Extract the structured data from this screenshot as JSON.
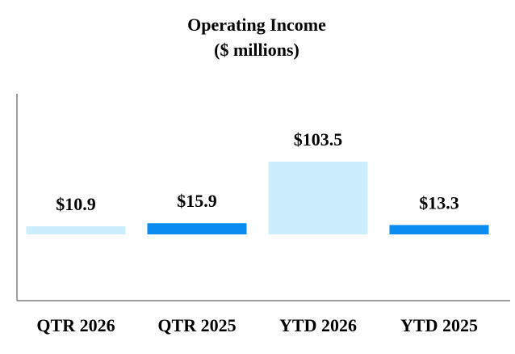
{
  "chart_data": {
    "type": "bar",
    "title": "Operating Income",
    "subtitle": "($ millions)",
    "xlabel": "",
    "ylabel": "",
    "categories": [
      "QTR 2026",
      "QTR 2025",
      "YTD 2026",
      "YTD 2025"
    ],
    "values": [
      10.9,
      15.9,
      103.5,
      13.3
    ],
    "data_labels": [
      "$10.9",
      "$15.9",
      "$103.5",
      "$13.3"
    ],
    "grid": false,
    "legend": "none",
    "colors": [
      "#cceefc",
      "#0a8cf0",
      "#cceefc",
      "#0a8cf0"
    ]
  }
}
